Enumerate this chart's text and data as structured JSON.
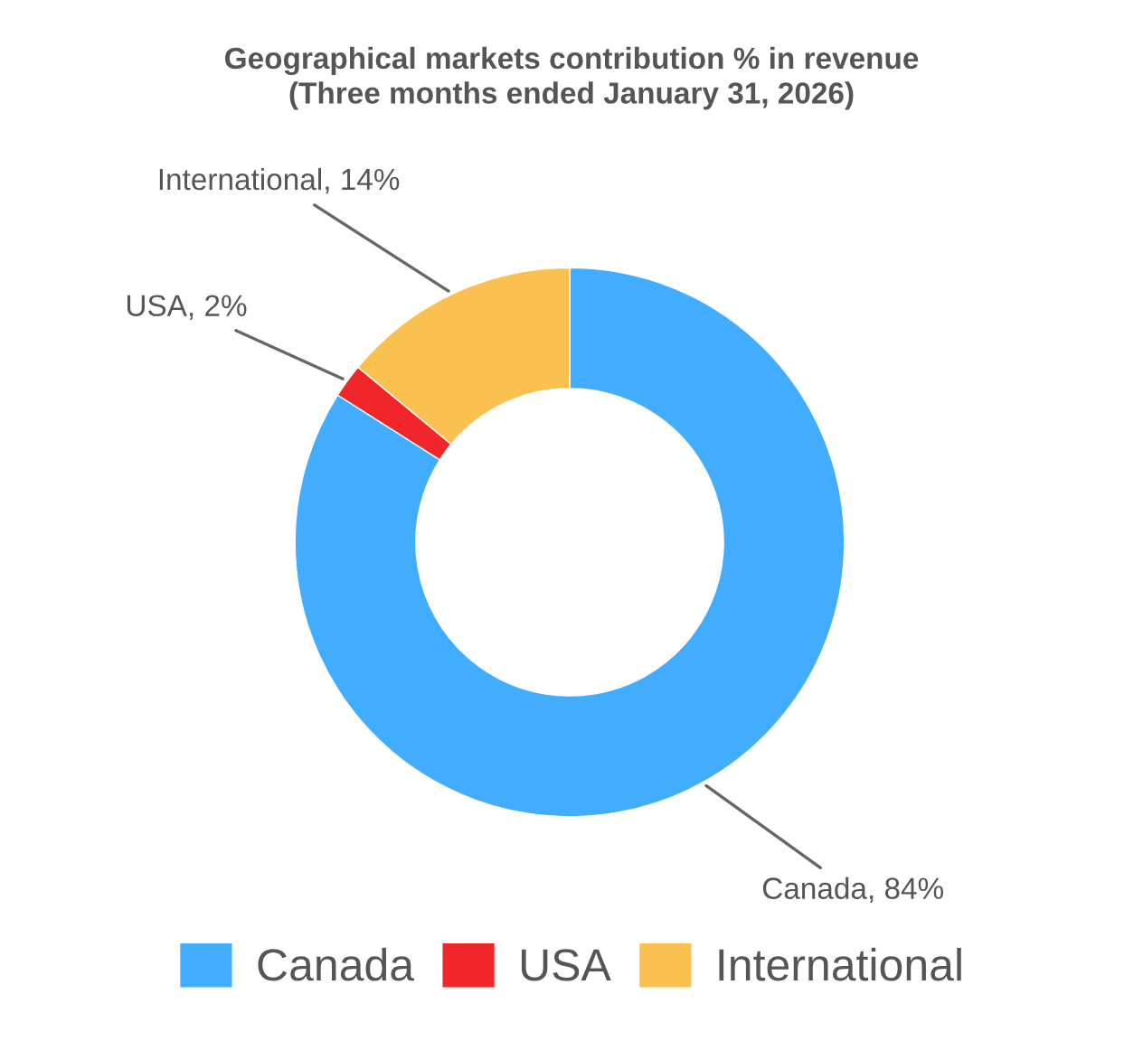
{
  "chart_data": {
    "type": "donut",
    "title": "Geographical markets contribution % in revenue\n(Three months ended January 31, 2026)",
    "categories": [
      "Canada",
      "USA",
      "International"
    ],
    "values": [
      84,
      2,
      14
    ],
    "colors": [
      "#42adfe",
      "#f0262a",
      "#fac151"
    ],
    "value_labels": [
      "Canada, 84%",
      "USA, 2%",
      "International, 14%"
    ],
    "legend": "bottom"
  }
}
